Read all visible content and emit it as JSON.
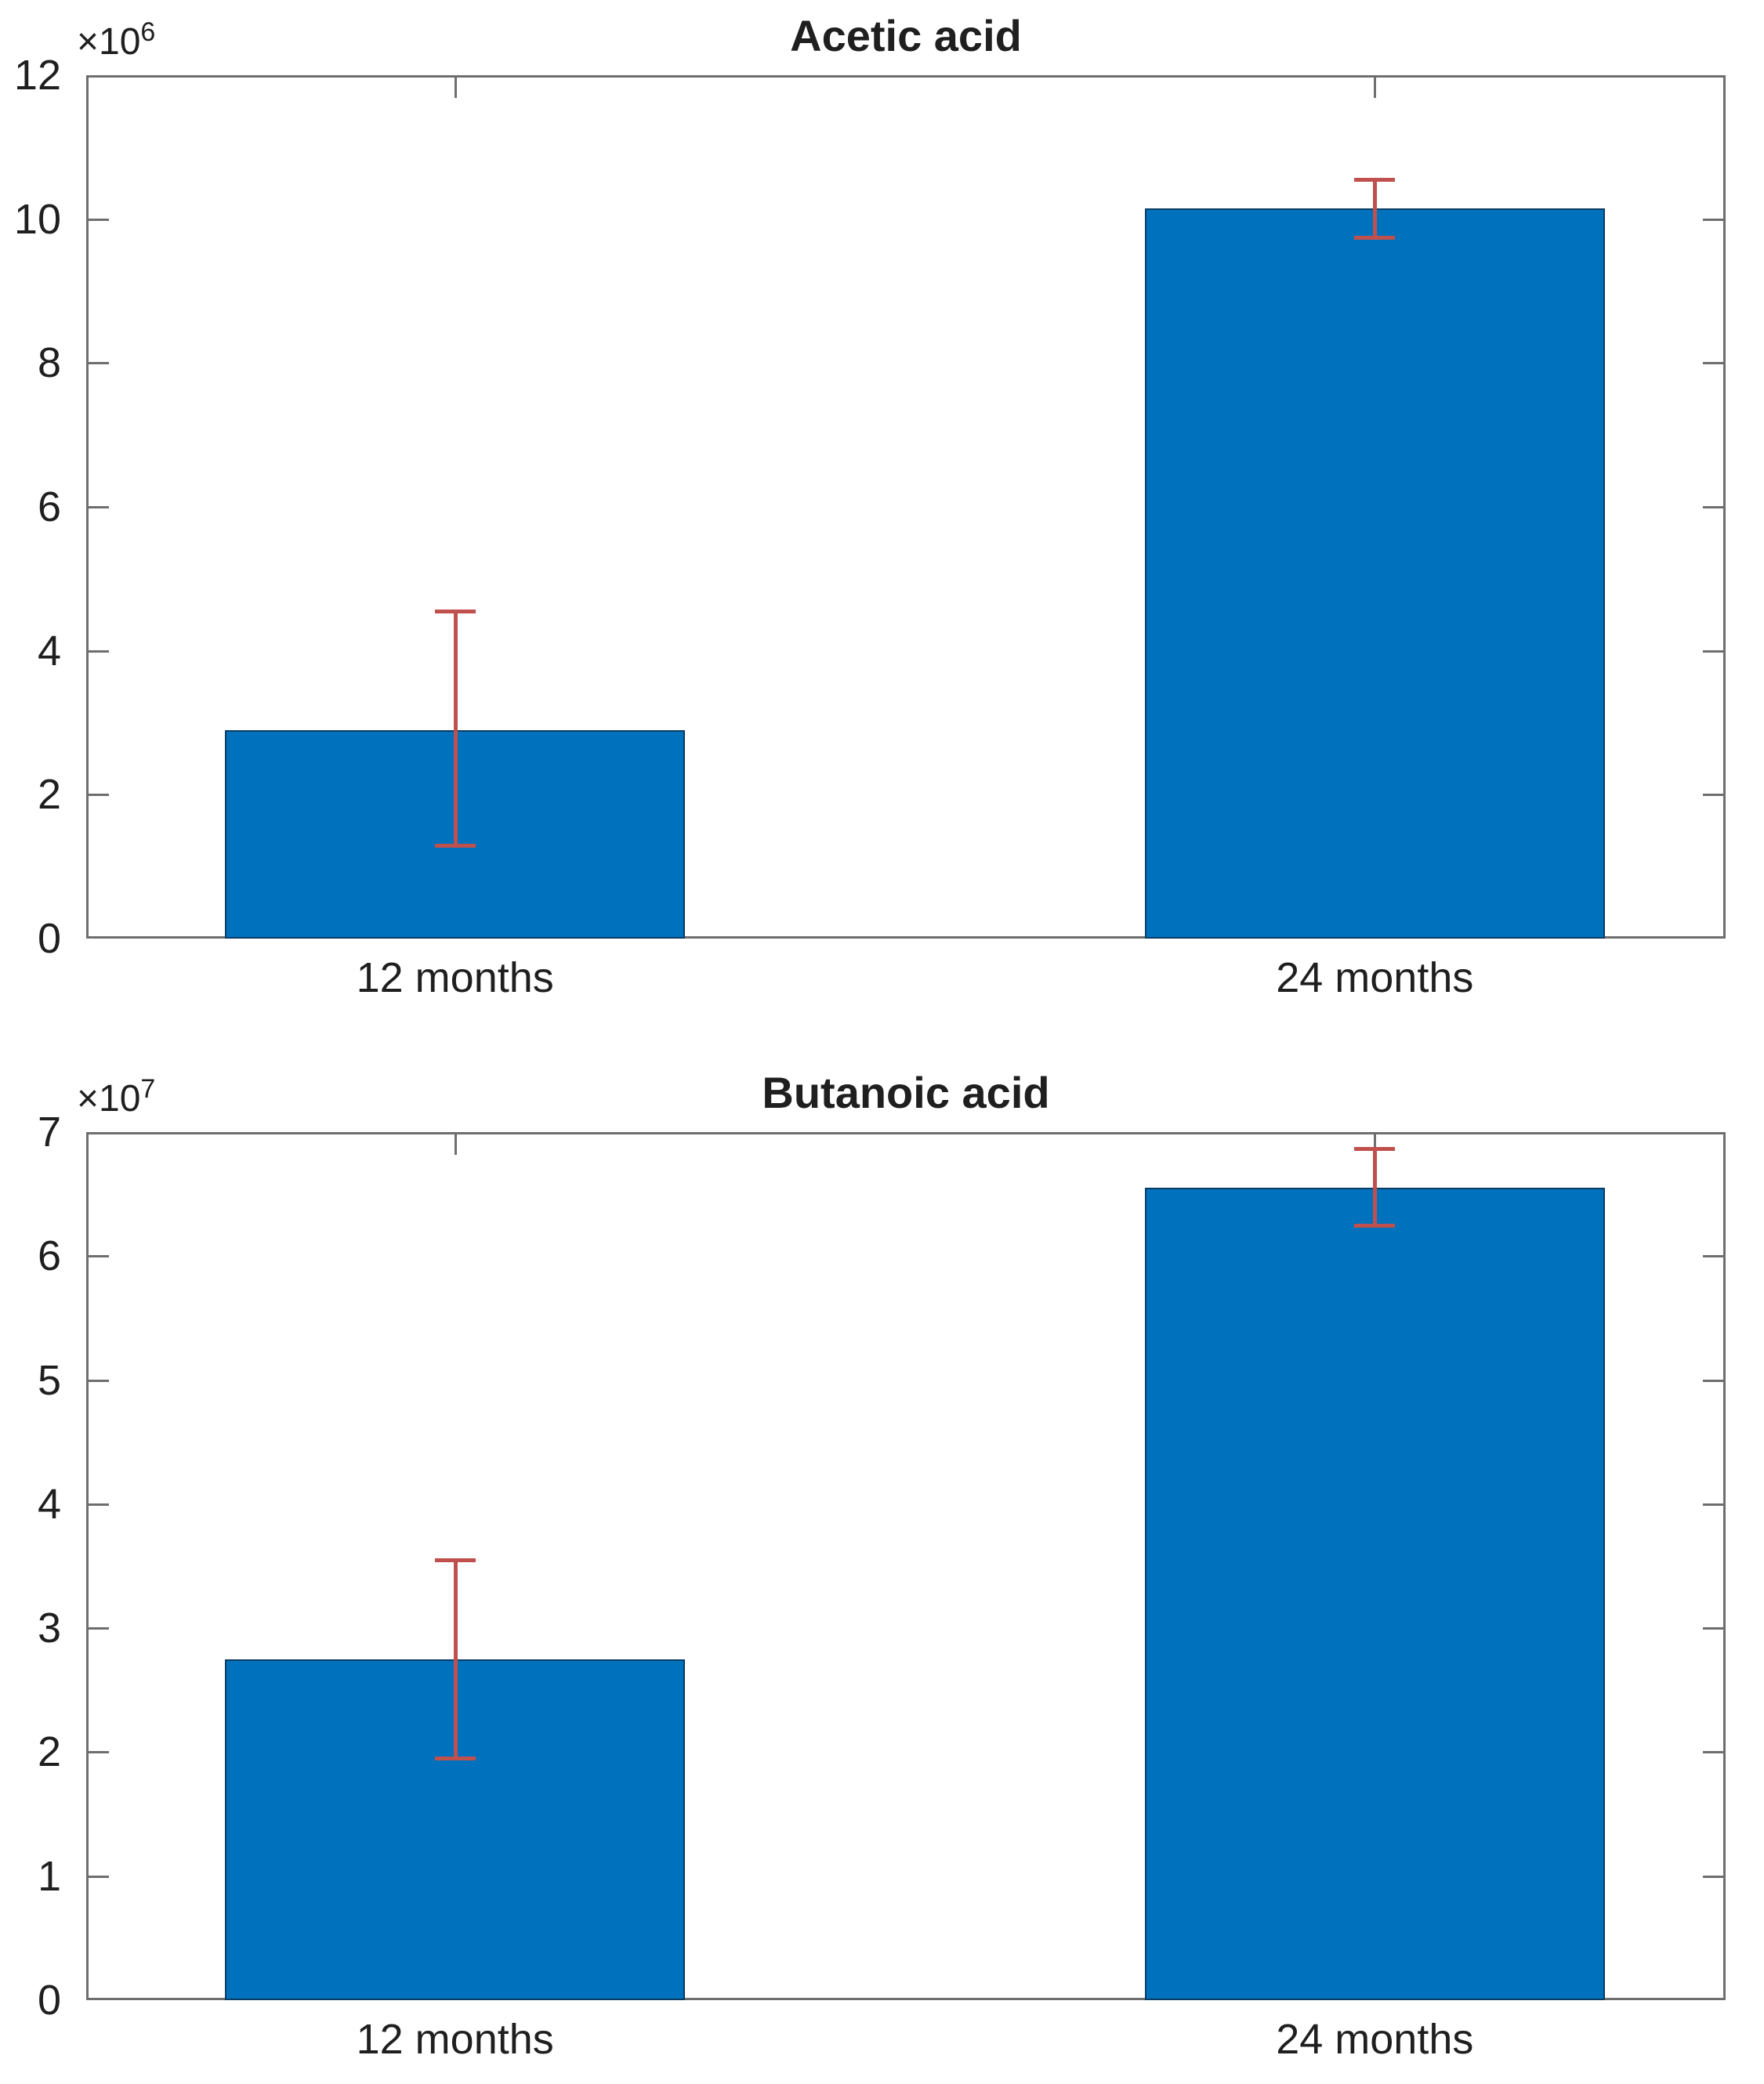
{
  "figure": {
    "background": "#ffffff",
    "text_color": "#1f1f1f"
  },
  "chart_data": [
    {
      "type": "bar",
      "title": "Acetic acid",
      "scale_label": {
        "prefix": "×10",
        "exp": "6"
      },
      "categories": [
        "12 months",
        "24 months"
      ],
      "values": [
        2.9,
        10.15
      ],
      "errors": [
        {
          "low": 1.3,
          "high": 4.55
        },
        {
          "low": 9.75,
          "high": 10.55
        }
      ],
      "ylim": [
        0,
        12
      ],
      "yticks": [
        "0",
        "2",
        "4",
        "6",
        "8",
        "10",
        "12"
      ],
      "xlabel": "",
      "ylabel": "",
      "grid": false,
      "legend": "none",
      "bar_color": "#0072bd",
      "bar_edge_color": "rgba(15,30,50,0.65)",
      "error_color": "#c0504d",
      "axis_color": "#6e6e6e"
    },
    {
      "type": "bar",
      "title": "Butanoic acid",
      "scale_label": {
        "prefix": "×10",
        "exp": "7"
      },
      "categories": [
        "12 months",
        "24 months"
      ],
      "values": [
        2.75,
        6.55
      ],
      "errors": [
        {
          "low": 1.95,
          "high": 3.55
        },
        {
          "low": 6.25,
          "high": 6.87
        }
      ],
      "ylim": [
        0,
        7
      ],
      "yticks": [
        "0",
        "1",
        "2",
        "3",
        "4",
        "5",
        "6",
        "7"
      ],
      "xlabel": "",
      "ylabel": "",
      "grid": false,
      "legend": "none",
      "bar_color": "#0072bd",
      "bar_edge_color": "rgba(15,30,50,0.65)",
      "error_color": "#c0504d",
      "axis_color": "#6e6e6e"
    }
  ]
}
